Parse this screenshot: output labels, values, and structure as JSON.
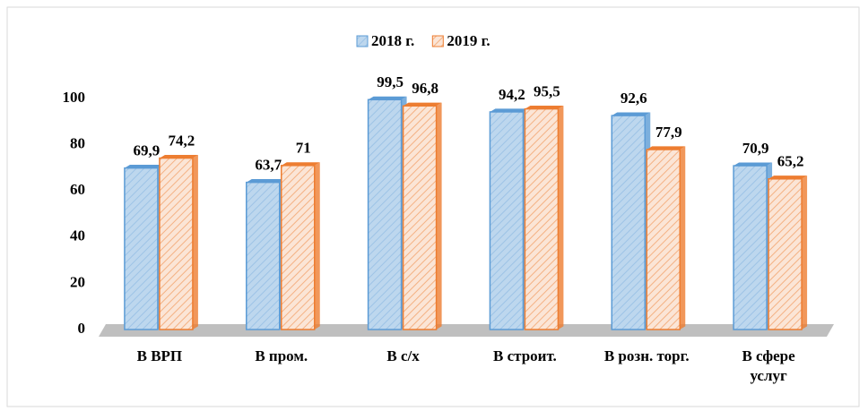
{
  "chart_data": {
    "type": "bar",
    "categories": [
      "В ВРП",
      "В пром.",
      "В с/х",
      "В строит.",
      "В розн. торг.",
      "В сфере услуг"
    ],
    "series": [
      {
        "name": "2018 г.",
        "color": "#bdd7ee",
        "edge": "#5b9bd5",
        "values": [
          69.9,
          63.7,
          99.5,
          94.2,
          92.6,
          70.9
        ],
        "value_labels": [
          "69,9",
          "63,7",
          "99,5",
          "94,2",
          "92,6",
          "70,9"
        ]
      },
      {
        "name": "2019 г.",
        "color": "#fbe5d6",
        "edge": "#ed7d31",
        "values": [
          74.2,
          71,
          96.8,
          95.5,
          77.9,
          65.2
        ],
        "value_labels": [
          "74,2",
          "71",
          "96,8",
          "95,5",
          "77,9",
          "65,2"
        ]
      }
    ],
    "ylim": [
      0,
      100
    ],
    "yticks": [
      0,
      20,
      40,
      60,
      80,
      100
    ],
    "legend": "top"
  }
}
